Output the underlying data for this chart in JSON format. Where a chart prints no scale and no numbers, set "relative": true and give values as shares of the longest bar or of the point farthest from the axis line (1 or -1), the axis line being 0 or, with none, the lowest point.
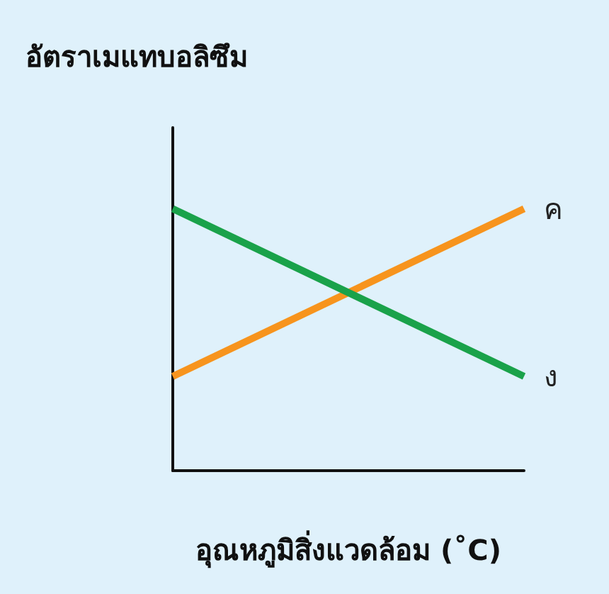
{
  "chart_data": {
    "type": "line",
    "relative": true,
    "ylabel": "อัตราเมแทบอลิซึม",
    "xlabel": "อุณหภูมิสิ่งแวดล้อม (˚C)",
    "categories": [
      null,
      null
    ],
    "series": [
      {
        "name": "ค",
        "color": "#f7941d",
        "values": [
          0.36,
          1
        ]
      },
      {
        "name": "ง",
        "color": "#1aa24a",
        "values": [
          1,
          0.36
        ]
      }
    ],
    "legend": false,
    "grid": false,
    "marker": "none"
  }
}
